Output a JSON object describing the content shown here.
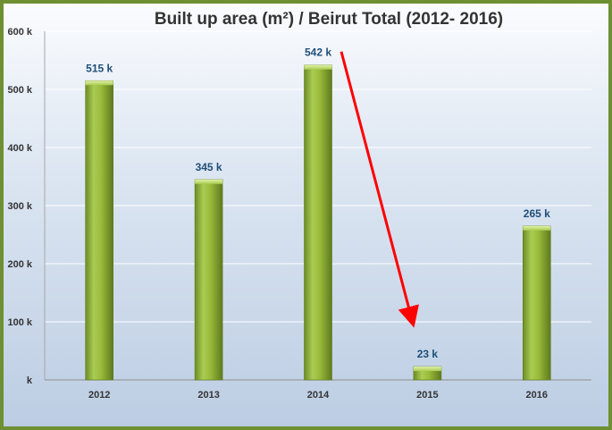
{
  "chart_data": {
    "type": "bar",
    "title": "Built up area (m²) / Beirut Total (2012- 2016)",
    "xlabel": "",
    "ylabel": "",
    "categories": [
      "2012",
      "2013",
      "2014",
      "2015",
      "2016"
    ],
    "values": [
      515,
      345,
      542,
      23,
      265
    ],
    "data_labels": [
      "515 k",
      "345 k",
      "542 k",
      "23 k",
      "265 k"
    ],
    "ylim": [
      0,
      600
    ],
    "y_ticks": [
      0,
      100,
      200,
      300,
      400,
      500,
      600
    ],
    "y_tick_labels": [
      "k",
      "100 k",
      "200 k",
      "300 k",
      "400 k",
      "500 k",
      "600 k"
    ],
    "grid": true,
    "legend": "none",
    "annotation": "red arrow from the 2014 bar down to the 2015 bar",
    "colors": {
      "bar": "#9bbb3b",
      "frame": "#6f8f33",
      "arrow": "#ff0000",
      "data_label": "#1f4e79"
    }
  }
}
